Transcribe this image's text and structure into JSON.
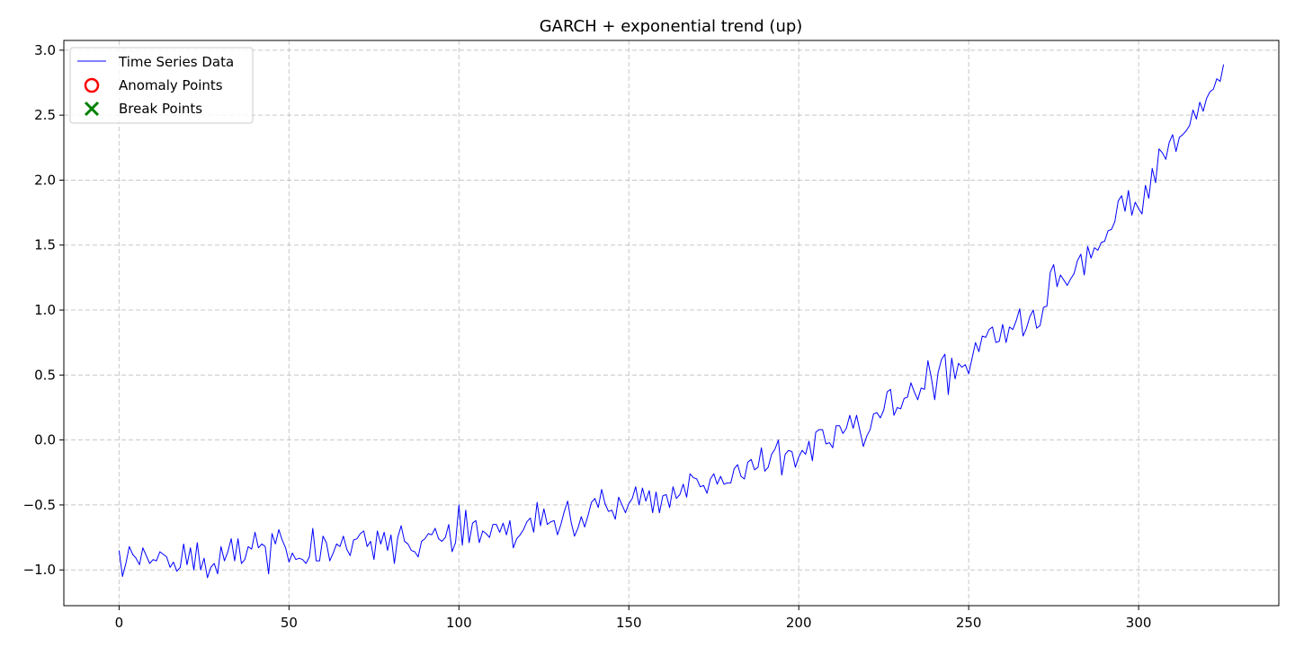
{
  "chart_data": {
    "type": "line",
    "title": "GARCH + exponential trend (up)",
    "xlabel": "",
    "ylabel": "",
    "xlim": [
      -16.25,
      341.25
    ],
    "ylim": [
      -1.275,
      3.075
    ],
    "xticks": [
      0,
      50,
      100,
      150,
      200,
      250,
      300
    ],
    "yticks": [
      -1.0,
      -0.5,
      0.0,
      0.5,
      1.0,
      1.5,
      2.0,
      2.5,
      3.0
    ],
    "ytick_labels": [
      "−1.0",
      "−0.5",
      "0.0",
      "0.5",
      "1.0",
      "1.5",
      "2.0",
      "2.5",
      "3.0"
    ],
    "grid": true,
    "legend_position": "top-left",
    "legend": [
      {
        "label": "Time Series Data",
        "marker": "line",
        "color": "#0000ff"
      },
      {
        "label": "Anomaly Points",
        "marker": "circle",
        "color": "#ff0000"
      },
      {
        "label": "Break Points",
        "marker": "x",
        "color": "#008000"
      }
    ],
    "series": [
      {
        "name": "Time Series Data",
        "color": "#0000ff",
        "x_start": 0,
        "x_step": 1,
        "values": [
          -0.85,
          -1.05,
          -0.95,
          -0.82,
          -0.88,
          -0.91,
          -0.96,
          -0.83,
          -0.89,
          -0.95,
          -0.92,
          -0.93,
          -0.86,
          -0.88,
          -0.9,
          -0.98,
          -0.94,
          -1.01,
          -0.98,
          -0.8,
          -0.96,
          -0.83,
          -1.0,
          -0.79,
          -1.0,
          -0.91,
          -1.06,
          -0.98,
          -0.95,
          -1.03,
          -0.82,
          -0.93,
          -0.86,
          -0.76,
          -0.93,
          -0.76,
          -0.95,
          -0.92,
          -0.82,
          -0.84,
          -0.71,
          -0.83,
          -0.8,
          -0.82,
          -1.03,
          -0.72,
          -0.8,
          -0.69,
          -0.77,
          -0.83,
          -0.94,
          -0.87,
          -0.92,
          -0.91,
          -0.92,
          -0.95,
          -0.9,
          -0.68,
          -0.93,
          -0.93,
          -0.74,
          -0.79,
          -0.93,
          -0.87,
          -0.8,
          -0.82,
          -0.74,
          -0.84,
          -0.89,
          -0.77,
          -0.76,
          -0.72,
          -0.7,
          -0.82,
          -0.78,
          -0.92,
          -0.7,
          -0.8,
          -0.71,
          -0.85,
          -0.73,
          -0.95,
          -0.75,
          -0.66,
          -0.78,
          -0.8,
          -0.85,
          -0.86,
          -0.9,
          -0.78,
          -0.76,
          -0.72,
          -0.73,
          -0.68,
          -0.76,
          -0.78,
          -0.75,
          -0.65,
          -0.86,
          -0.79,
          -0.5,
          -0.81,
          -0.54,
          -0.79,
          -0.64,
          -0.62,
          -0.79,
          -0.7,
          -0.72,
          -0.75,
          -0.65,
          -0.65,
          -0.71,
          -0.64,
          -0.73,
          -0.62,
          -0.83,
          -0.76,
          -0.73,
          -0.69,
          -0.63,
          -0.6,
          -0.71,
          -0.48,
          -0.66,
          -0.53,
          -0.65,
          -0.63,
          -0.62,
          -0.73,
          -0.65,
          -0.55,
          -0.47,
          -0.63,
          -0.74,
          -0.68,
          -0.59,
          -0.67,
          -0.58,
          -0.48,
          -0.45,
          -0.52,
          -0.38,
          -0.49,
          -0.55,
          -0.54,
          -0.61,
          -0.44,
          -0.5,
          -0.56,
          -0.49,
          -0.45,
          -0.36,
          -0.5,
          -0.37,
          -0.47,
          -0.39,
          -0.56,
          -0.4,
          -0.56,
          -0.43,
          -0.42,
          -0.52,
          -0.36,
          -0.45,
          -0.42,
          -0.34,
          -0.44,
          -0.26,
          -0.29,
          -0.3,
          -0.36,
          -0.35,
          -0.41,
          -0.3,
          -0.26,
          -0.34,
          -0.28,
          -0.34,
          -0.33,
          -0.33,
          -0.22,
          -0.19,
          -0.28,
          -0.3,
          -0.17,
          -0.15,
          -0.23,
          -0.21,
          -0.06,
          -0.24,
          -0.21,
          -0.11,
          -0.07,
          -0.0,
          -0.27,
          -0.11,
          -0.08,
          -0.09,
          -0.21,
          -0.13,
          -0.08,
          -0.11,
          -0.01,
          -0.16,
          0.06,
          0.08,
          0.08,
          -0.03,
          -0.02,
          -0.06,
          0.11,
          0.11,
          0.05,
          0.09,
          0.19,
          0.09,
          0.19,
          0.07,
          -0.05,
          0.03,
          0.08,
          0.2,
          0.21,
          0.17,
          0.23,
          0.37,
          0.39,
          0.19,
          0.25,
          0.24,
          0.32,
          0.33,
          0.44,
          0.37,
          0.31,
          0.4,
          0.39,
          0.61,
          0.48,
          0.31,
          0.52,
          0.62,
          0.66,
          0.35,
          0.63,
          0.47,
          0.59,
          0.56,
          0.58,
          0.51,
          0.63,
          0.75,
          0.68,
          0.8,
          0.79,
          0.85,
          0.87,
          0.75,
          0.76,
          0.89,
          0.75,
          0.87,
          0.85,
          0.92,
          1.01,
          0.8,
          0.86,
          0.95,
          1.0,
          0.86,
          0.88,
          1.02,
          1.03,
          1.29,
          1.35,
          1.18,
          1.27,
          1.23,
          1.19,
          1.24,
          1.28,
          1.38,
          1.43,
          1.27,
          1.49,
          1.4,
          1.48,
          1.46,
          1.52,
          1.53,
          1.61,
          1.62,
          1.68,
          1.84,
          1.88,
          1.76,
          1.92,
          1.73,
          1.83,
          1.78,
          1.74,
          1.96,
          1.86,
          2.09,
          1.98,
          2.24,
          2.21,
          2.16,
          2.29,
          2.35,
          2.22,
          2.33,
          2.35,
          2.38,
          2.42,
          2.54,
          2.47,
          2.6,
          2.53,
          2.63,
          2.68,
          2.7,
          2.78,
          2.76,
          2.89
        ]
      }
    ]
  }
}
